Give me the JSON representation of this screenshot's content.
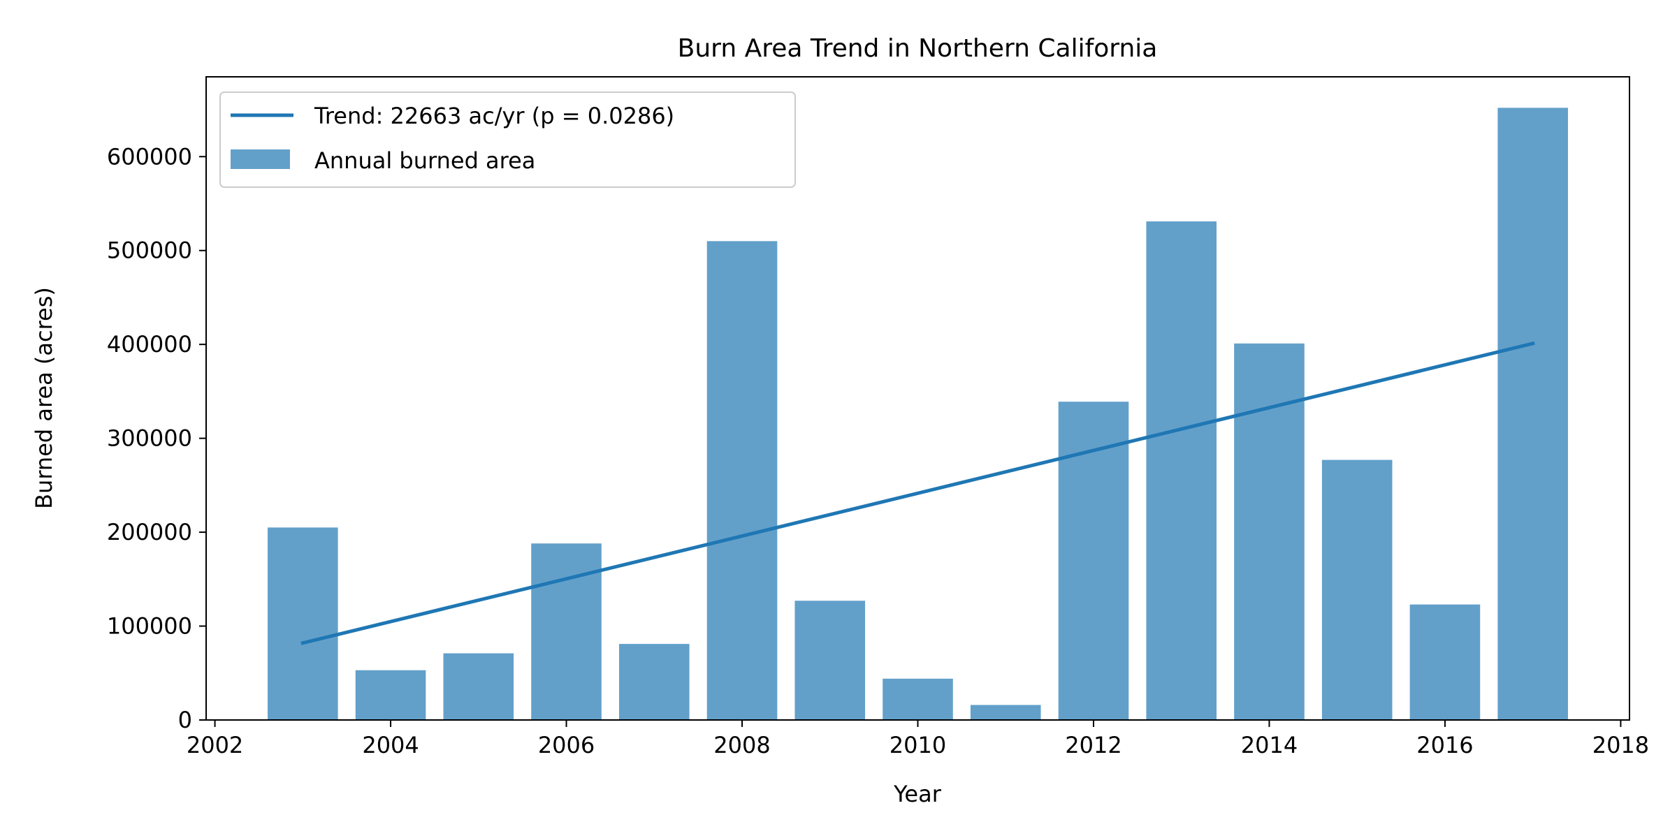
{
  "chart_data": {
    "type": "bar",
    "title": "Burn Area Trend in Northern California",
    "xlabel": "Year",
    "ylabel": "Burned area (acres)",
    "xlim": [
      2001.9,
      2018.1
    ],
    "ylim": [
      0,
      685000
    ],
    "x_ticks": [
      2002,
      2004,
      2006,
      2008,
      2010,
      2012,
      2014,
      2016,
      2018
    ],
    "y_ticks": [
      0,
      100000,
      200000,
      300000,
      400000,
      500000,
      600000
    ],
    "x_tick_labels": [
      "2002",
      "2004",
      "2006",
      "2008",
      "2010",
      "2012",
      "2014",
      "2016",
      "2018"
    ],
    "y_tick_labels": [
      "0",
      "100000",
      "200000",
      "300000",
      "400000",
      "500000",
      "600000"
    ],
    "grid": false,
    "legend_position": "top-left",
    "series": [
      {
        "name": "Annual burned area",
        "type": "bar",
        "color": "#1f77b4",
        "x": [
          2003,
          2004,
          2005,
          2006,
          2007,
          2008,
          2009,
          2010,
          2011,
          2012,
          2013,
          2014,
          2015,
          2016,
          2017
        ],
        "values": [
          205000,
          53000,
          71000,
          188000,
          81000,
          510000,
          127000,
          44000,
          16000,
          339000,
          531000,
          401000,
          277000,
          123000,
          652000
        ]
      },
      {
        "name": "Trend: 22663 ac/yr (p = 0.0286)",
        "type": "line",
        "color": "#1f77b4",
        "x": [
          2003,
          2017
        ],
        "values": [
          82000,
          401000
        ]
      }
    ]
  }
}
